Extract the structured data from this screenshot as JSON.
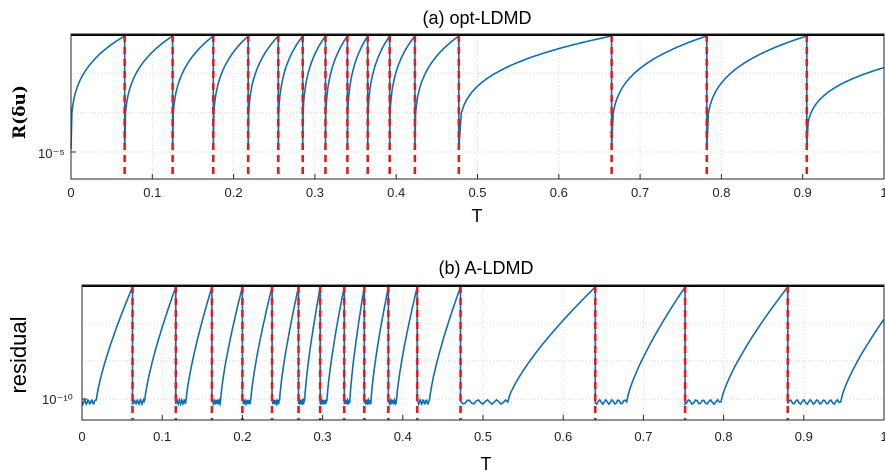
{
  "chart_data": [
    {
      "type": "line",
      "title": "(a) opt-LDMD",
      "xlabel": "T",
      "ylabel": "R(δu)",
      "xlim": [
        0,
        1
      ],
      "x_ticks": [
        "0",
        "0.1",
        "0.2",
        "0.3",
        "0.4",
        "0.5",
        "0.6",
        "0.7",
        "0.8",
        "0.9",
        "1"
      ],
      "y_tick_label": "10⁻⁵",
      "y_tick_value": 1e-05,
      "threshold_line": true,
      "restart_times": [
        0.066,
        0.125,
        0.175,
        0.218,
        0.255,
        0.285,
        0.313,
        0.34,
        0.365,
        0.392,
        0.423,
        0.477,
        0.665,
        0.782,
        0.905
      ],
      "grid": true
    },
    {
      "type": "line",
      "title": "(b) A-LDMD",
      "xlabel": "T",
      "ylabel": "residual",
      "xlim": [
        0,
        1
      ],
      "x_ticks": [
        "0",
        "0.1",
        "0.2",
        "0.3",
        "0.4",
        "0.5",
        "0.6",
        "0.7",
        "0.8",
        "0.9",
        "1"
      ],
      "y_tick_label": "10⁻¹⁰",
      "y_tick_value": 1e-10,
      "threshold_line": true,
      "restart_times": [
        0.063,
        0.117,
        0.162,
        0.2,
        0.237,
        0.27,
        0.297,
        0.327,
        0.352,
        0.382,
        0.418,
        0.472,
        0.64,
        0.752,
        0.88
      ],
      "grid": true
    }
  ]
}
